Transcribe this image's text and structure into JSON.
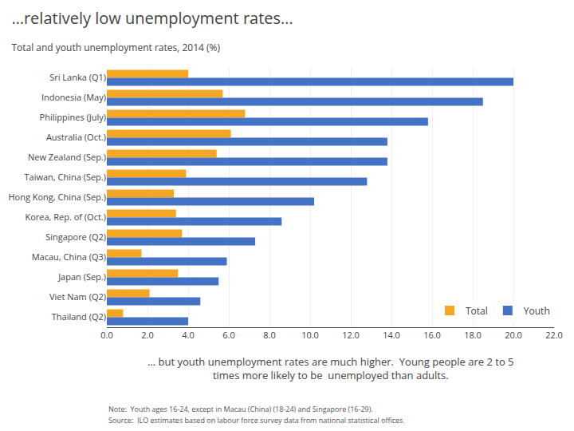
{
  "chart_data": {
    "type": "bar",
    "orientation": "horizontal",
    "title": "…relatively low unemployment rates…",
    "subtitle": "Total and youth unemployment rates, 2014 (%)",
    "categories": [
      "Sri Lanka (Q1)",
      "Indonesia (May)",
      "Philippines (July)",
      "Australia (Oct.)",
      "New Zealand (Sep.)",
      "Taiwan, China (Sep.)",
      "Hong Kong, China (Sep.)",
      "Korea, Rep. of (Oct.)",
      "Singapore (Q2)",
      "Macau, China (Q3)",
      "Japan (Sep.)",
      "Viet Nam (Q2)",
      "Thailand (Q2)"
    ],
    "series": [
      {
        "name": "Total",
        "color": "#F5A623",
        "values": [
          4.0,
          5.7,
          6.8,
          6.1,
          5.4,
          3.9,
          3.3,
          3.4,
          3.7,
          1.7,
          3.5,
          2.1,
          0.8
        ]
      },
      {
        "name": "Youth",
        "color": "#4472C4",
        "values": [
          20.0,
          18.5,
          15.8,
          13.8,
          13.8,
          12.8,
          10.2,
          8.6,
          7.3,
          5.9,
          5.5,
          4.6,
          4.0
        ]
      }
    ],
    "xlim": [
      0,
      22
    ],
    "xticks": [
      {
        "value": 0,
        "label": "0.0"
      },
      {
        "value": 2,
        "label": "2.0"
      },
      {
        "value": 4,
        "label": "4.0"
      },
      {
        "value": 6,
        "label": "6.0"
      },
      {
        "value": 8,
        "label": "8.0"
      },
      {
        "value": 10,
        "label": "10.0"
      },
      {
        "value": 12,
        "label": "12.0"
      },
      {
        "value": 14,
        "label": "14.0"
      },
      {
        "value": 16,
        "label": "16.0"
      },
      {
        "value": 18,
        "label": "18.0"
      },
      {
        "value": 20,
        "label": "20.0"
      },
      {
        "value": 22,
        "label": "22.0"
      }
    ],
    "grid": true,
    "legend": "lower right",
    "annotations": [
      "… but youth unemployment rates are much higher.  Young people are 2 to 5 times more likely to be  unemployed than adults.",
      "Note:  Youth ages 16-24, except in Macau (China) (18-24) and Singapore (16-29).",
      "Source:  ILO estimates based on labour force survey data from national statistical offices."
    ]
  }
}
